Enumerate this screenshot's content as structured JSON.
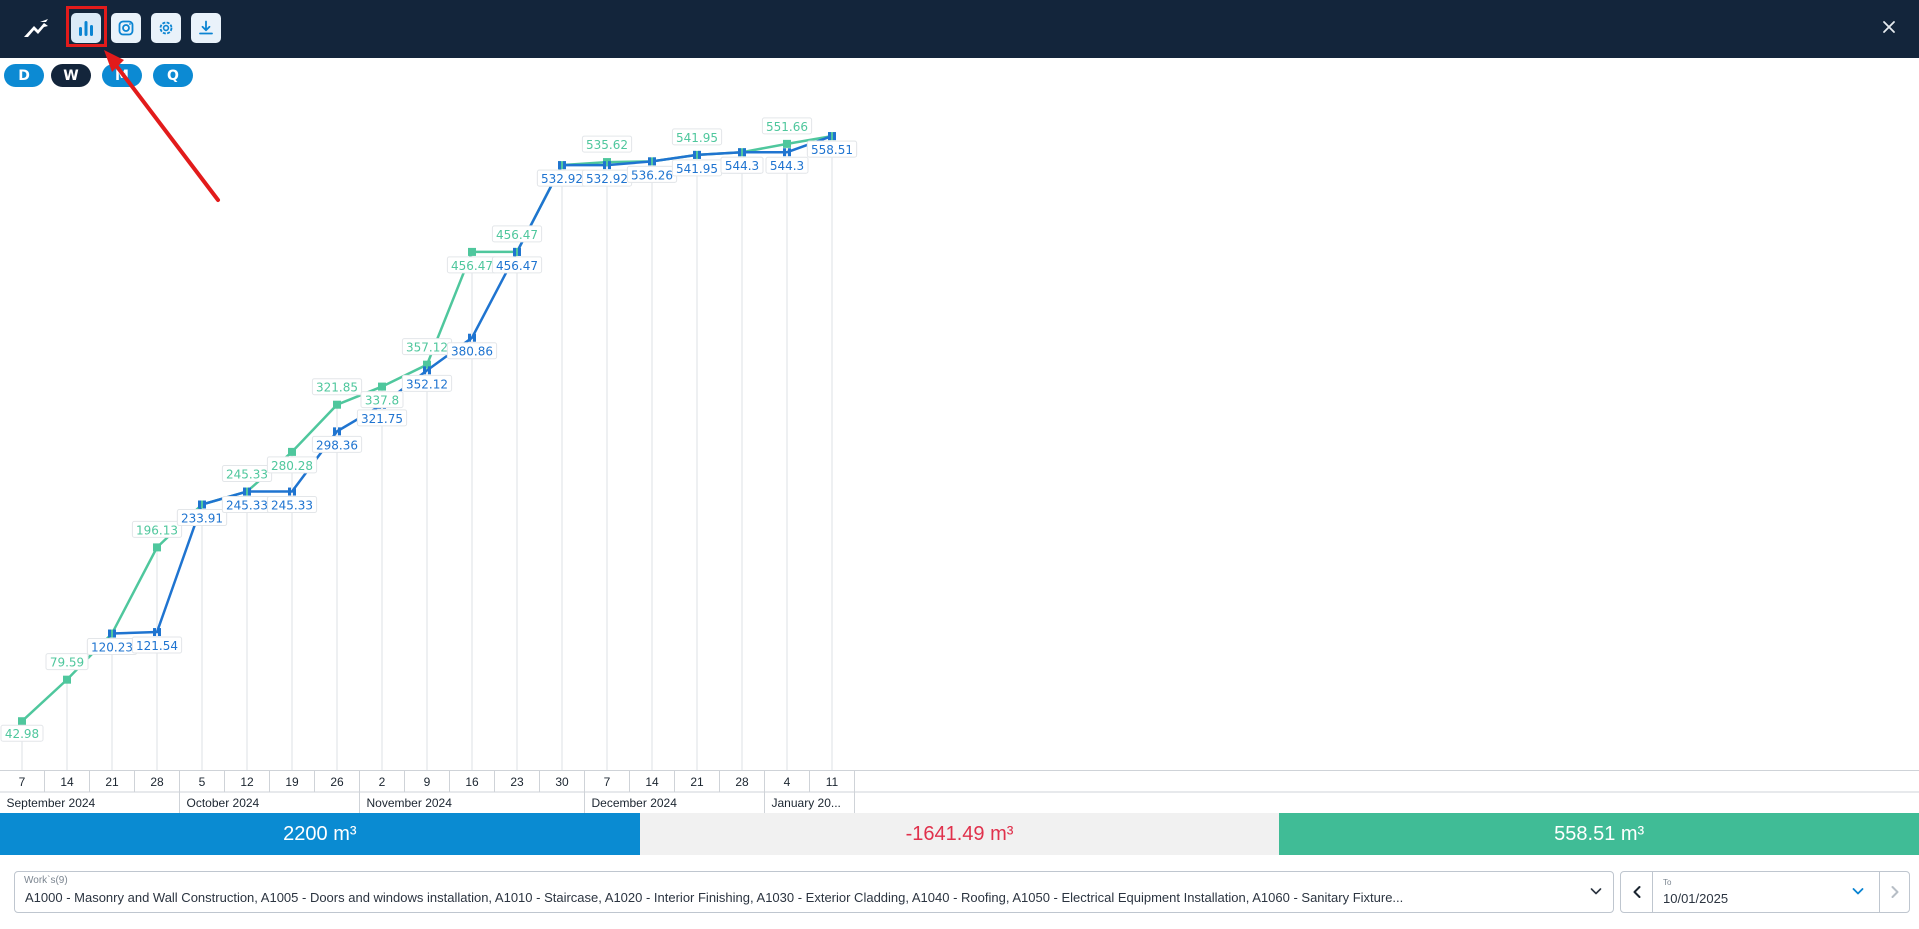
{
  "toolbar": {
    "buttons": [
      {
        "name": "chart-bars-icon",
        "active": true
      },
      {
        "name": "instagram-icon",
        "active": false
      },
      {
        "name": "gear-icon",
        "active": false
      },
      {
        "name": "download-icon",
        "active": false
      }
    ],
    "close_icon": "close-icon"
  },
  "period_pills": [
    {
      "label": "D",
      "selected": false
    },
    {
      "label": "W",
      "selected": true
    },
    {
      "label": "M",
      "selected": false
    },
    {
      "label": "Q",
      "selected": false
    }
  ],
  "chart_data": {
    "type": "line",
    "x": [
      "Sep 7",
      "Sep 14",
      "Sep 21",
      "Sep 28",
      "Oct 5",
      "Oct 12",
      "Oct 19",
      "Oct 26",
      "Nov 2",
      "Nov 9",
      "Nov 16",
      "Nov 23",
      "Nov 30",
      "Dec 7",
      "Dec 14",
      "Dec 21",
      "Dec 28",
      "Jan 4",
      "Jan 11"
    ],
    "tick_labels": [
      "7",
      "14",
      "21",
      "28",
      "5",
      "12",
      "19",
      "26",
      "2",
      "9",
      "16",
      "23",
      "30",
      "7",
      "14",
      "21",
      "28",
      "4",
      "11"
    ],
    "months": [
      {
        "label": "September 2024",
        "start": 0,
        "count": 4
      },
      {
        "label": "October 2024",
        "start": 4,
        "count": 4
      },
      {
        "label": "November 2024",
        "start": 8,
        "count": 5
      },
      {
        "label": "December 2024",
        "start": 13,
        "count": 4
      },
      {
        "label": "January 20...",
        "start": 17,
        "count": 2
      }
    ],
    "series": [
      {
        "color": "#4fc79d",
        "values": [
          42.98,
          79.59,
          120.23,
          196.13,
          233.91,
          245.33,
          280.28,
          321.85,
          337.8,
          357.12,
          456.47,
          456.47,
          532.92,
          535.62,
          536.26,
          541.95,
          544.3,
          551.66,
          558.51
        ],
        "labels": [
          "42.98",
          "79.59",
          "120.23",
          "196.13",
          "233.91",
          "245.33",
          "280.28",
          "321.85",
          "337.8",
          "357.12",
          "456.47",
          "456.47",
          "532.92",
          "535.62",
          "536.26",
          "541.95",
          "544.3",
          "551.66",
          "558.51"
        ]
      },
      {
        "color": "#1f74d0",
        "values": [
          null,
          null,
          120.23,
          121.54,
          233.91,
          245.33,
          245.33,
          298.36,
          321.75,
          352.12,
          380.86,
          456.47,
          532.92,
          532.92,
          536.26,
          541.95,
          544.3,
          544.3,
          558.51
        ],
        "labels": [
          null,
          null,
          "120.23",
          "121.54",
          "233.91",
          "245.33",
          "245.33",
          "298.36",
          "321.75",
          "352.12",
          "380.86",
          "456.47",
          "532.92",
          "532.92",
          "536.26",
          "541.95",
          "544.3",
          "544.3",
          "558.51"
        ]
      }
    ],
    "ylim": [
      0,
      600
    ],
    "grid": "vertical"
  },
  "summary": {
    "target": "2200 m³",
    "difference": "-1641.49 m³",
    "completed": "558.51 m³",
    "colors": {
      "target": "#0a8bd2",
      "difference": "#e0314c",
      "completed": "#40bc96"
    }
  },
  "works_select": {
    "label": "Work`s(9)",
    "value": "A1000 - Masonry and Wall Construction, A1005 - Doors and windows installation, A1010 - Staircase, A1020 - Interior Finishing, A1030 - Exterior Cladding, A1040 - Roofing, A1050 - Electrical Equipment Installation, A1060 - Sanitary Fixture..."
  },
  "date_picker": {
    "label": "To",
    "value": "10/01/2025"
  },
  "annotation": {
    "arrow_color": "#e21b1b"
  }
}
